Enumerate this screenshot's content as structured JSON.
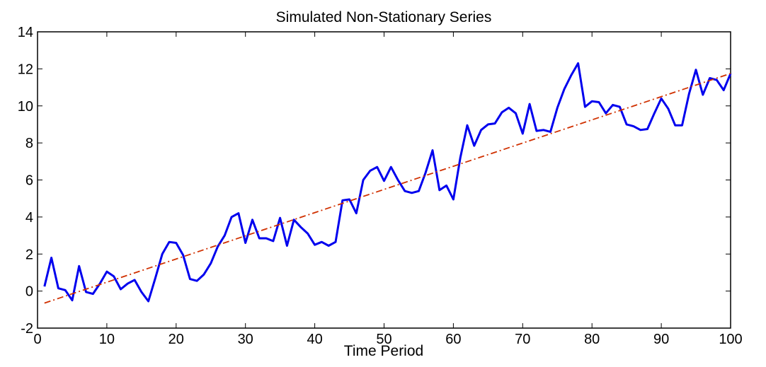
{
  "chart_data": {
    "type": "line",
    "title": "Simulated Non-Stationary Series",
    "xlabel": "Time Period",
    "ylabel": "",
    "xlim": [
      0,
      100
    ],
    "ylim": [
      -2,
      14
    ],
    "xticks": [
      "0",
      "10",
      "20",
      "30",
      "40",
      "50",
      "60",
      "70",
      "80",
      "90",
      "100"
    ],
    "yticks": [
      "-2",
      "0",
      "2",
      "4",
      "6",
      "8",
      "10",
      "12",
      "14"
    ],
    "grid": false,
    "series": [
      {
        "color": "#0000ee",
        "style": "solid",
        "x": [
          1,
          2,
          3,
          4,
          5,
          6,
          7,
          8,
          9,
          10,
          11,
          12,
          13,
          14,
          15,
          16,
          17,
          18,
          19,
          20,
          21,
          22,
          23,
          24,
          25,
          26,
          27,
          28,
          29,
          30,
          31,
          32,
          33,
          34,
          35,
          36,
          37,
          38,
          39,
          40,
          41,
          42,
          43,
          44,
          45,
          46,
          47,
          48,
          49,
          50,
          51,
          52,
          53,
          54,
          55,
          56,
          57,
          58,
          59,
          60,
          61,
          62,
          63,
          64,
          65,
          66,
          67,
          68,
          69,
          70,
          71,
          72,
          73,
          74,
          75,
          76,
          77,
          78,
          79,
          80,
          81,
          82,
          83,
          84,
          85,
          86,
          87,
          88,
          89,
          90,
          91,
          92,
          93,
          94,
          95,
          96,
          97,
          98,
          99,
          100
        ],
        "y": [
          0.25,
          1.8,
          0.15,
          0.05,
          -0.5,
          1.35,
          -0.05,
          -0.15,
          0.4,
          1.05,
          0.8,
          0.1,
          0.4,
          0.6,
          -0.05,
          -0.55,
          0.7,
          2.0,
          2.65,
          2.6,
          1.95,
          0.65,
          0.55,
          0.9,
          1.5,
          2.4,
          3.0,
          4.0,
          4.2,
          2.6,
          3.85,
          2.85,
          2.85,
          2.7,
          3.95,
          2.45,
          3.85,
          3.45,
          3.1,
          2.5,
          2.65,
          2.45,
          2.65,
          4.9,
          4.95,
          4.2,
          6.0,
          6.5,
          6.7,
          5.95,
          6.7,
          6.0,
          5.4,
          5.3,
          5.4,
          6.4,
          7.6,
          5.45,
          5.7,
          4.95,
          7.2,
          8.95,
          7.85,
          8.7,
          9.0,
          9.05,
          9.65,
          9.9,
          9.6,
          8.5,
          10.1,
          8.65,
          8.7,
          8.6,
          9.9,
          10.9,
          11.65,
          12.3,
          9.95,
          10.25,
          10.2,
          9.6,
          10.05,
          9.95,
          9.0,
          8.9,
          8.7,
          8.75,
          9.6,
          10.4,
          9.85,
          8.95,
          8.95,
          10.65,
          11.95,
          10.6,
          11.5,
          11.4,
          10.85,
          11.75
        ]
      },
      {
        "color": "#d03000",
        "style": "dash-dot",
        "x": [
          1,
          100
        ],
        "y": [
          -0.65,
          11.75
        ]
      }
    ]
  }
}
